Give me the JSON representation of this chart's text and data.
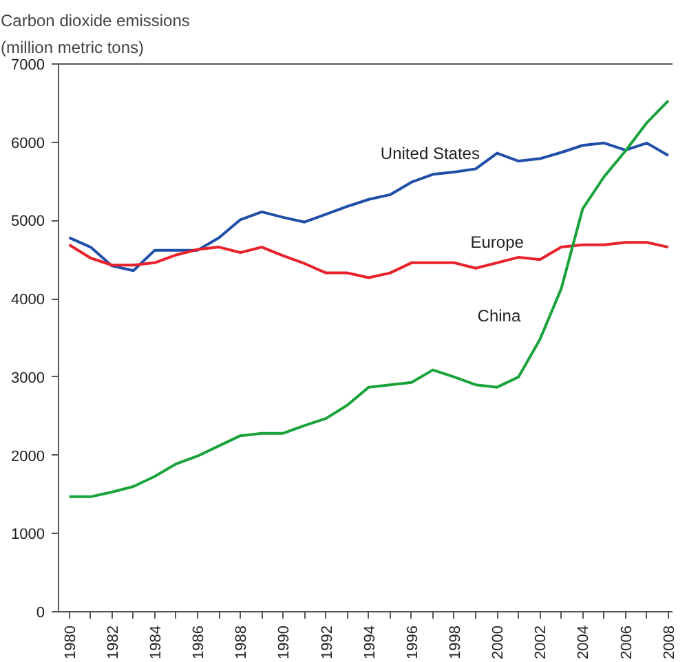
{
  "chart_data": {
    "type": "line",
    "ylabel": "Carbon dioxide emissions\n(million metric tons)",
    "x": [
      1980,
      1981,
      1982,
      1983,
      1984,
      1985,
      1986,
      1987,
      1988,
      1989,
      1990,
      1991,
      1992,
      1993,
      1994,
      1995,
      1996,
      1997,
      1998,
      1999,
      2000,
      2001,
      2002,
      2003,
      2004,
      2005,
      2006,
      2007,
      2008
    ],
    "series": [
      {
        "name": "United States",
        "color": "#1f4fa8",
        "values": [
          4780,
          4660,
          4420,
          4360,
          4620,
          4620,
          4620,
          4780,
          5010,
          5110,
          5040,
          4980,
          5080,
          5180,
          5270,
          5330,
          5490,
          5590,
          5620,
          5660,
          5860,
          5760,
          5790,
          5870,
          5960,
          5990,
          5900,
          5990,
          5830
        ]
      },
      {
        "name": "Europe",
        "color": "#e8212b",
        "values": [
          4690,
          4520,
          4430,
          4430,
          4460,
          4560,
          4630,
          4660,
          4590,
          4660,
          4550,
          4450,
          4330,
          4330,
          4270,
          4330,
          4460,
          4460,
          4460,
          4390,
          4460,
          4530,
          4500,
          4660,
          4690,
          4690,
          4720,
          4720,
          4660
        ]
      },
      {
        "name": "China",
        "color": "#1aa33a",
        "values": [
          1470,
          1470,
          1530,
          1600,
          1730,
          1890,
          1990,
          2120,
          2250,
          2280,
          2280,
          2380,
          2470,
          2640,
          2870,
          2900,
          2930,
          3090,
          3000,
          2900,
          2870,
          3000,
          3480,
          4130,
          5150,
          5560,
          5890,
          6250,
          6530
        ]
      }
    ],
    "xlim": [
      1979.5,
      2008.2
    ],
    "ylim": [
      0,
      7000
    ],
    "xticks": [
      1980,
      {
        "value": 1981,
        "label": null
      },
      1982,
      {
        "value": 1983,
        "label": null
      },
      1984,
      {
        "value": 1985,
        "label": null
      },
      1986,
      {
        "value": 1987,
        "label": null
      },
      1988,
      {
        "value": 1989,
        "label": null
      },
      1990,
      {
        "value": 1991,
        "label": null
      },
      1992,
      {
        "value": 1993,
        "label": null
      },
      1994,
      {
        "value": 1995,
        "label": null
      },
      1996,
      {
        "value": 1997,
        "label": null
      },
      1998,
      {
        "value": 1999,
        "label": null
      },
      2000,
      {
        "value": 2001,
        "label": null
      },
      2002,
      {
        "value": 2003,
        "label": null
      },
      2004,
      {
        "value": 2005,
        "label": null
      },
      2006,
      {
        "value": 2007,
        "label": null
      },
      2008
    ],
    "yticks": [
      0,
      1000,
      2000,
      3000,
      4000,
      5000,
      6000,
      7000
    ],
    "grid": false,
    "legend": false
  }
}
